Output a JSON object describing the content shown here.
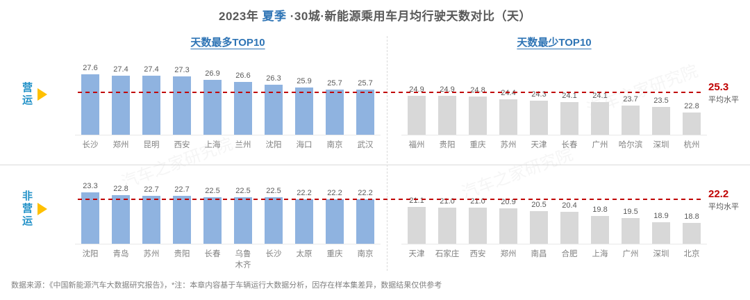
{
  "title": {
    "prefix": "2023年 ",
    "highlight": "夏季",
    "suffix": " ·30城·新能源乘用车月均行驶天数对比（天）"
  },
  "panel_headers": [
    "天数最多TOP10",
    "天数最少TOP10"
  ],
  "row_labels": [
    {
      "text": "营运"
    },
    {
      "text": "非营运"
    }
  ],
  "average_caption": "平均水平",
  "watermark": "汽车之家研究院",
  "footer": "数据来源：《中国新能源汽车大数据研究报告》，*注：本章内容基于车辆运行大数据分析，因存在样本集差异，数据结果仅供参考",
  "colors": {
    "accent_blue": "#2E74B5",
    "row_label_blue": "#2492C8",
    "bar_blue": "#8FB3E0",
    "bar_gray": "#D8D8D8",
    "average_red": "#C00000",
    "arrow_yellow": "#FFC000",
    "text_dark": "#595959",
    "text_gray": "#808080"
  },
  "chart_data": [
    {
      "type": "bar",
      "group": "营运",
      "panel": "天数最多TOP10",
      "categories": [
        "长沙",
        "郑州",
        "昆明",
        "西安",
        "上海",
        "兰州",
        "沈阳",
        "海口",
        "南京",
        "武汉"
      ],
      "values": [
        27.6,
        27.4,
        27.4,
        27.3,
        26.9,
        26.6,
        26.3,
        25.9,
        25.7,
        25.7
      ],
      "average": 25.3,
      "bar_color": "#8FB3E0",
      "ylim": [
        20,
        28
      ],
      "grid": false,
      "legend": "none"
    },
    {
      "type": "bar",
      "group": "营运",
      "panel": "天数最少TOP10",
      "categories": [
        "福州",
        "贵阳",
        "重庆",
        "苏州",
        "天津",
        "长春",
        "广州",
        "哈尔滨",
        "深圳",
        "杭州"
      ],
      "values": [
        24.9,
        24.9,
        24.8,
        24.4,
        24.3,
        24.1,
        24.1,
        23.7,
        23.5,
        22.8
      ],
      "average": 25.3,
      "bar_color": "#D8D8D8",
      "ylim": [
        20,
        28
      ],
      "grid": false,
      "legend": "none"
    },
    {
      "type": "bar",
      "group": "非营运",
      "panel": "天数最多TOP10",
      "categories": [
        "沈阳",
        "青岛",
        "苏州",
        "贵阳",
        "长春",
        "乌鲁木齐",
        "长沙",
        "太原",
        "重庆",
        "南京"
      ],
      "values": [
        23.3,
        22.8,
        22.7,
        22.7,
        22.5,
        22.5,
        22.5,
        22.2,
        22.2,
        22.2
      ],
      "average": 22.2,
      "bar_color": "#8FB3E0",
      "ylim": [
        15.7,
        24
      ],
      "grid": false,
      "legend": "none"
    },
    {
      "type": "bar",
      "group": "非营运",
      "panel": "天数最少TOP10",
      "categories": [
        "天津",
        "石家庄",
        "西安",
        "郑州",
        "南昌",
        "合肥",
        "上海",
        "广州",
        "深圳",
        "北京"
      ],
      "values": [
        21.1,
        21.0,
        21.0,
        20.9,
        20.5,
        20.4,
        19.8,
        19.5,
        18.9,
        18.8
      ],
      "average": 22.2,
      "bar_color": "#D8D8D8",
      "ylim": [
        15.7,
        24
      ],
      "grid": false,
      "legend": "none"
    }
  ]
}
